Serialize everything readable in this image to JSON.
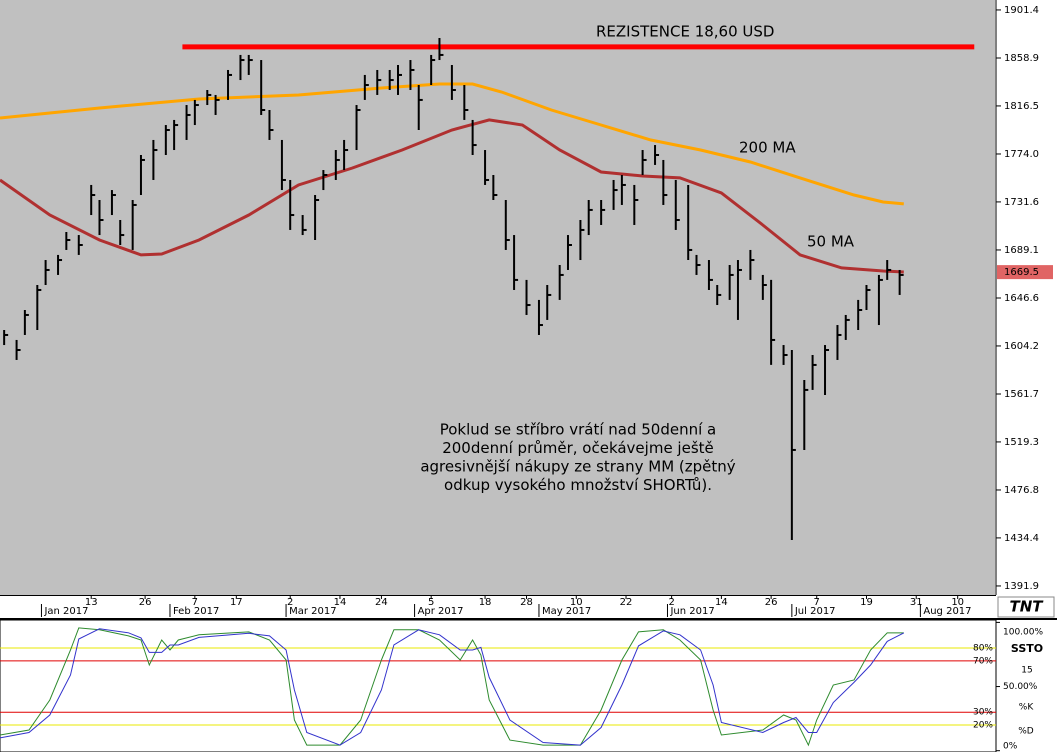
{
  "chart_data": [
    {
      "type": "ohlc",
      "logo": "TNT",
      "color": "#000000",
      "xlim": [
        "2016-12-22",
        "2017-08-19"
      ],
      "ylim": [
        1383.9,
        1910.2
      ],
      "yticks": [
        1901.4,
        1858.9,
        1816.5,
        {
          "value": 1774.0,
          "label": "1774.0"
        },
        1731.6,
        1689.1,
        1646.6,
        1604.2,
        1561.7,
        1519.3,
        1476.8,
        1434.4,
        1391.9
      ],
      "xticks": [
        {
          "value": "2017-01-13",
          "label": "13"
        },
        {
          "value": "2017-01-26",
          "label": "26"
        },
        {
          "value": "2017-02-07",
          "label": "7"
        },
        {
          "value": "2017-02-17",
          "label": "17"
        },
        {
          "value": "2017-03-02",
          "label": "2"
        },
        {
          "value": "2017-03-14",
          "label": "14"
        },
        {
          "value": "2017-03-24",
          "label": "24"
        },
        {
          "value": "2017-04-05",
          "label": "5"
        },
        {
          "value": "2017-04-18",
          "label": "18"
        },
        {
          "value": "2017-04-28",
          "label": "28"
        },
        {
          "value": "2017-05-10",
          "label": "10"
        },
        {
          "value": "2017-05-22",
          "label": "22"
        },
        {
          "value": "2017-06-02",
          "label": "2"
        },
        {
          "value": "2017-06-14",
          "label": "14"
        },
        {
          "value": "2017-06-26",
          "label": "26"
        },
        {
          "value": "2017-07-07",
          "label": "7"
        },
        {
          "value": "2017-07-19",
          "label": "19"
        },
        {
          "value": "2017-07-31",
          "label": "31"
        },
        {
          "value": "2017-08-10",
          "label": "10"
        }
      ],
      "month_labels": [
        {
          "value": "2017-01-01",
          "label": "Jan 2017"
        },
        {
          "value": "2017-02-01",
          "label": "Feb 2017"
        },
        {
          "value": "2017-03-01",
          "label": "Mar 2017"
        },
        {
          "value": "2017-04-01",
          "label": "Apr 2017"
        },
        {
          "value": "2017-05-01",
          "label": "May 2017"
        },
        {
          "value": "2017-06-01",
          "label": "Jun 2017"
        },
        {
          "value": "2017-07-01",
          "label": "Jul 2017"
        },
        {
          "value": "2017-08-01",
          "label": "Aug 2017"
        }
      ],
      "x": [
        "2016-12-23",
        "2016-12-26",
        "2016-12-28",
        "2016-12-31",
        "2017-01-02",
        "2017-01-05",
        "2017-01-07",
        "2017-01-10",
        "2017-01-13",
        "2017-01-15",
        "2017-01-18",
        "2017-01-20",
        "2017-01-23",
        "2017-01-25",
        "2017-01-28",
        "2017-01-31",
        "2017-02-02",
        "2017-02-05",
        "2017-02-07",
        "2017-02-10",
        "2017-02-12",
        "2017-02-15",
        "2017-02-18",
        "2017-02-20",
        "2017-02-23",
        "2017-02-25",
        "2017-02-28",
        "2017-03-02",
        "2017-03-05",
        "2017-03-08",
        "2017-03-10",
        "2017-03-13",
        "2017-03-15",
        "2017-03-18",
        "2017-03-20",
        "2017-03-23",
        "2017-03-26",
        "2017-03-28",
        "2017-03-31",
        "2017-04-02",
        "2017-04-05",
        "2017-04-07",
        "2017-04-10",
        "2017-04-13",
        "2017-04-15",
        "2017-04-18",
        "2017-04-20",
        "2017-04-23",
        "2017-04-25",
        "2017-04-28",
        "2017-05-01",
        "2017-05-03",
        "2017-05-06",
        "2017-05-08",
        "2017-05-11",
        "2017-05-13",
        "2017-05-16",
        "2017-05-19",
        "2017-05-21",
        "2017-05-24",
        "2017-05-26",
        "2017-05-29",
        "2017-05-31",
        "2017-06-03",
        "2017-06-06",
        "2017-06-08",
        "2017-06-11",
        "2017-06-13",
        "2017-06-16",
        "2017-06-18",
        "2017-06-21",
        "2017-06-24",
        "2017-06-26",
        "2017-06-29",
        "2017-07-01",
        "2017-07-04",
        "2017-07-06",
        "2017-07-09",
        "2017-07-12",
        "2017-07-14",
        "2017-07-17",
        "2017-07-19",
        "2017-07-22",
        "2017-07-24",
        "2017-07-27"
      ],
      "high": [
        1618.3,
        1609.5,
        1636.0,
        1658.1,
        1680.2,
        1684.7,
        1705.0,
        1702.3,
        1746.6,
        1733.3,
        1742.1,
        1715.6,
        1733.3,
        1773.1,
        1786.4,
        1799.6,
        1804.1,
        1817.3,
        1821.8,
        1830.6,
        1826.2,
        1848.3,
        1861.6,
        1861.6,
        1857.1,
        1812.9,
        1786.4,
        1751.0,
        1720.0,
        1737.7,
        1759.8,
        1777.5,
        1786.4,
        1817.3,
        1843.9,
        1848.3,
        1848.3,
        1852.7,
        1857.1,
        1835.0,
        1861.6,
        1876.6,
        1852.7,
        1835.0,
        1804.1,
        1777.5,
        1755.4,
        1733.3,
        1702.3,
        1662.6,
        1644.9,
        1658.1,
        1675.8,
        1702.3,
        1715.6,
        1733.3,
        1733.3,
        1751.0,
        1755.4,
        1746.6,
        1777.5,
        1781.9,
        1768.7,
        1751.0,
        1746.6,
        1684.7,
        1680.2,
        1658.1,
        1675.8,
        1680.2,
        1689.1,
        1667.0,
        1662.6,
        1605.0,
        1600.6,
        1574.1,
        1596.2,
        1605.0,
        1622.7,
        1631.6,
        1644.9,
        1658.1,
        1667.0,
        1680.2,
        1671.4
      ],
      "low": [
        1605.0,
        1591.8,
        1613.9,
        1618.3,
        1658.1,
        1667.0,
        1689.1,
        1684.7,
        1720.0,
        1702.3,
        1720.0,
        1693.5,
        1689.1,
        1737.7,
        1751.0,
        1773.1,
        1777.5,
        1786.4,
        1799.6,
        1817.3,
        1808.5,
        1821.8,
        1839.4,
        1843.9,
        1808.5,
        1786.4,
        1742.1,
        1706.8,
        1702.3,
        1697.9,
        1742.1,
        1751.0,
        1759.8,
        1777.5,
        1821.8,
        1826.2,
        1830.6,
        1826.2,
        1830.6,
        1795.2,
        1835.0,
        1857.1,
        1821.8,
        1804.1,
        1773.1,
        1746.6,
        1733.3,
        1689.1,
        1653.7,
        1631.6,
        1613.9,
        1627.2,
        1644.9,
        1671.4,
        1680.2,
        1702.3,
        1711.2,
        1724.5,
        1728.9,
        1711.2,
        1755.4,
        1764.3,
        1728.9,
        1706.8,
        1680.2,
        1667.0,
        1653.7,
        1640.4,
        1644.9,
        1627.2,
        1662.6,
        1644.9,
        1587.4,
        1587.4,
        1432.6,
        1512.2,
        1565.3,
        1560.8,
        1591.8,
        1609.5,
        1618.3,
        1636.0,
        1622.7,
        1662.6,
        1649.3
      ],
      "close": [
        1613.9,
        1600.6,
        1631.6,
        1653.7,
        1671.4,
        1680.2,
        1697.9,
        1693.5,
        1737.7,
        1715.6,
        1737.7,
        1702.3,
        1728.9,
        1768.7,
        1777.5,
        1795.2,
        1799.6,
        1808.5,
        1817.3,
        1826.2,
        1821.8,
        1843.9,
        1857.1,
        1857.1,
        1812.9,
        1795.2,
        1751.0,
        1720.0,
        1706.8,
        1733.3,
        1755.4,
        1768.7,
        1777.5,
        1812.9,
        1835.0,
        1839.4,
        1839.4,
        1843.9,
        1848.3,
        1821.8,
        1857.1,
        1861.6,
        1830.6,
        1812.9,
        1781.9,
        1751.0,
        1737.7,
        1697.9,
        1662.6,
        1640.4,
        1622.7,
        1649.3,
        1667.0,
        1693.5,
        1706.8,
        1724.5,
        1724.5,
        1742.1,
        1746.6,
        1733.3,
        1768.7,
        1773.1,
        1737.7,
        1715.6,
        1689.1,
        1675.8,
        1662.6,
        1649.3,
        1667.0,
        1671.4,
        1680.2,
        1658.1,
        1609.5,
        1596.2,
        1512.2,
        1565.3,
        1587.4,
        1600.6,
        1613.9,
        1627.2,
        1636.0,
        1653.7,
        1662.6,
        1671.4,
        1667.0
      ],
      "lines": [
        {
          "name": "200 MA",
          "color": "#ffa500",
          "x": [
            "2016-12-22",
            "2017-01-15",
            "2017-02-08",
            "2017-03-04",
            "2017-03-24",
            "2017-04-07",
            "2017-04-15",
            "2017-04-22",
            "2017-05-04",
            "2017-05-16",
            "2017-05-28",
            "2017-06-09",
            "2017-06-21",
            "2017-07-03",
            "2017-07-16",
            "2017-07-23",
            "2017-07-28"
          ],
          "values": [
            1805.8,
            1814.7,
            1822.6,
            1826.2,
            1832.4,
            1835.9,
            1835.9,
            1828.8,
            1812.9,
            1799.6,
            1786.4,
            1777.5,
            1766.9,
            1752.8,
            1737.7,
            1731.5,
            1729.8
          ]
        },
        {
          "name": "50 MA",
          "color": "#b03030",
          "x": [
            "2016-12-22",
            "2017-01-03",
            "2017-01-15",
            "2017-01-25",
            "2017-01-30",
            "2017-02-08",
            "2017-02-20",
            "2017-03-04",
            "2017-03-17",
            "2017-03-29",
            "2017-04-10",
            "2017-04-19",
            "2017-04-27",
            "2017-05-06",
            "2017-05-16",
            "2017-05-26",
            "2017-06-04",
            "2017-06-14",
            "2017-06-24",
            "2017-07-03",
            "2017-07-13",
            "2017-07-23",
            "2017-07-28"
          ],
          "values": [
            1751.0,
            1720.0,
            1697.9,
            1684.7,
            1685.5,
            1697.9,
            1720.0,
            1746.6,
            1761.6,
            1777.5,
            1795.2,
            1804.1,
            1799.6,
            1777.5,
            1758.1,
            1754.5,
            1752.8,
            1739.5,
            1711.2,
            1684.7,
            1673.2,
            1670.5,
            1669.6
          ]
        }
      ],
      "resistance": {
        "label": "REZISTENCE 18,60 USD",
        "value": 1868.7,
        "color": "#ff0000",
        "x": [
          "2017-02-04",
          "2017-08-14"
        ]
      },
      "last_price": {
        "value": 1669.5,
        "color": "#e06464"
      },
      "annotation": [
        "Poklud se stříbro vrátí nad 50denní a",
        "200denní průměr, očekávejme ještě",
        "agresivnější nákupy ze strany MM (zpětný",
        "odkup vysokého množství SHORTů)."
      ]
    },
    {
      "type": "stochastic",
      "title": "SSTO",
      "period": 15,
      "xlim": [
        "2016-12-22",
        "2017-08-19"
      ],
      "ylim": [
        0,
        100
      ],
      "yticks": [
        {
          "value": 100,
          "label": "100.00%"
        },
        {
          "value": 50,
          "label": "50.00%"
        },
        {
          "value": 0,
          "label": "0%"
        }
      ],
      "levels": [
        {
          "value": 80,
          "label": "80%",
          "color": "#e8e800"
        },
        {
          "value": 70,
          "label": "70%",
          "color": "#e00000"
        },
        {
          "value": 30,
          "label": "30%",
          "color": "#e00000"
        },
        {
          "value": 20,
          "label": "20%",
          "color": "#e8e800"
        }
      ],
      "x": [
        "2016-12-22",
        "2016-12-29",
        "2017-01-03",
        "2017-01-08",
        "2017-01-10",
        "2017-01-15",
        "2017-01-22",
        "2017-01-25",
        "2017-01-27",
        "2017-01-30",
        "2017-02-01",
        "2017-02-03",
        "2017-02-08",
        "2017-02-20",
        "2017-02-25",
        "2017-03-01",
        "2017-03-03",
        "2017-03-06",
        "2017-03-14",
        "2017-03-19",
        "2017-03-24",
        "2017-03-27",
        "2017-04-02",
        "2017-04-07",
        "2017-04-12",
        "2017-04-15",
        "2017-04-17",
        "2017-04-19",
        "2017-04-24",
        "2017-05-02",
        "2017-05-11",
        "2017-05-16",
        "2017-05-21",
        "2017-05-25",
        "2017-05-31",
        "2017-06-04",
        "2017-06-09",
        "2017-06-12",
        "2017-06-14",
        "2017-06-24",
        "2017-06-29",
        "2017-07-02",
        "2017-07-05",
        "2017-07-07",
        "2017-07-11",
        "2017-07-16",
        "2017-07-20",
        "2017-07-24",
        "2017-07-28"
      ],
      "series": [
        {
          "name": "%K",
          "color": "#2e8b2e",
          "values": [
            12.2,
            16.1,
            39.5,
            78.5,
            95.7,
            94.2,
            89.5,
            86.3,
            66.8,
            86.3,
            78.5,
            86.3,
            90.3,
            92.6,
            86.3,
            70.7,
            23.9,
            4.4,
            4.4,
            23.9,
            70.7,
            94.2,
            94.2,
            86.3,
            70.7,
            86.3,
            74.6,
            39.5,
            8.3,
            4.4,
            4.4,
            31.7,
            70.7,
            92.6,
            94.2,
            86.3,
            70.7,
            31.7,
            12.2,
            16.1,
            27.8,
            23.9,
            4.4,
            23.9,
            51.2,
            55.1,
            78.5,
            91.8,
            91.8
          ]
        },
        {
          "name": "%D",
          "color": "#3333cc",
          "values": [
            10.0,
            14.2,
            27.8,
            59.0,
            87.1,
            95.0,
            91.9,
            87.9,
            76.6,
            76.6,
            82.4,
            82.4,
            88.3,
            91.5,
            89.5,
            78.5,
            47.3,
            14.2,
            4.4,
            14.2,
            47.3,
            82.5,
            94.2,
            90.3,
            78.5,
            78.5,
            80.5,
            57.1,
            23.9,
            6.4,
            4.4,
            18.1,
            51.2,
            81.7,
            93.4,
            90.3,
            78.5,
            51.2,
            22.0,
            14.2,
            22.0,
            25.9,
            14.2,
            14.2,
            37.6,
            53.2,
            66.8,
            85.2,
            91.8
          ]
        }
      ]
    }
  ]
}
